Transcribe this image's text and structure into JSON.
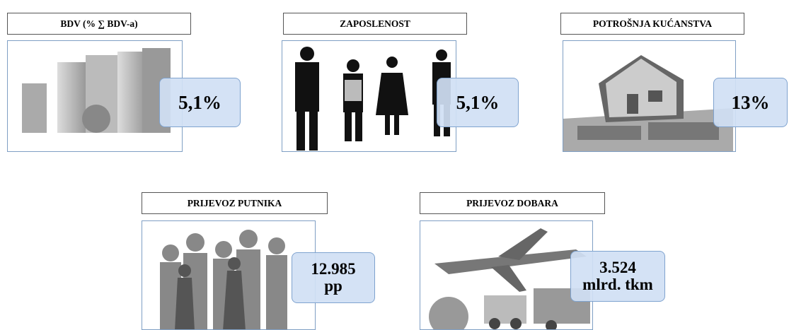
{
  "cards": [
    {
      "title": "BDV (% ∑ BDV-a)",
      "value": [
        "5,1%"
      ]
    },
    {
      "title": "ZAPOSLENOST",
      "value": [
        "5,1%"
      ]
    },
    {
      "title": "POTROŠNJA KUĆANSTVA",
      "value": [
        "13%"
      ]
    },
    {
      "title": "PRIJEVOZ PUTNIKA",
      "value": [
        "12.985",
        "pp"
      ]
    },
    {
      "title": "PRIJEVOZ DOBARA",
      "value": [
        "3.524",
        "mlrd. tkm"
      ]
    }
  ]
}
